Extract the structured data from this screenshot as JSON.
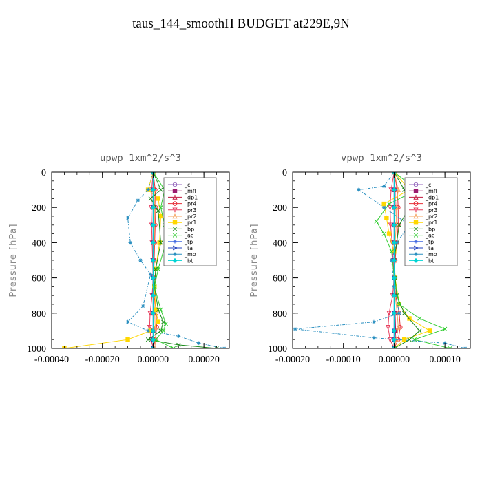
{
  "title": "taus_144_smoothH  BUDGET at229E,9N",
  "chart_data": [
    {
      "type": "line",
      "title": "upwp   1xm^2/s^3",
      "ylabel": "Pressure [hPa]",
      "xlabel": "",
      "xlim": [
        -0.0004,
        0.0003
      ],
      "ylim": [
        1000,
        0
      ],
      "xticks": [
        "-0.00040",
        "-0.00020",
        "0.00000",
        "0.00020"
      ],
      "xtick_values": [
        -0.0004,
        -0.0002,
        0.0,
        0.0002
      ],
      "yticks": [
        "0",
        "200",
        "400",
        "600",
        "800",
        "1000"
      ],
      "ytick_values": [
        0,
        200,
        400,
        600,
        800,
        1000
      ],
      "grid": false,
      "legend_position": "top-right",
      "series": [
        {
          "name": "_cl",
          "color": "#9467bd",
          "marker": "circle",
          "x": [
            0,
            0,
            0,
            0,
            0,
            0,
            0,
            0,
            0,
            0,
            0,
            0
          ],
          "y": [
            0,
            100,
            200,
            300,
            400,
            500,
            600,
            700,
            800,
            900,
            950,
            1000
          ]
        },
        {
          "name": "_mfl",
          "color": "#9a1a6e",
          "marker": "square",
          "x": [
            0,
            3e-06,
            2e-06,
            2e-06,
            1e-06,
            0,
            0,
            0,
            2e-06,
            3e-06,
            2e-06,
            0
          ],
          "y": [
            0,
            100,
            200,
            300,
            400,
            500,
            600,
            700,
            800,
            900,
            950,
            1000
          ]
        },
        {
          "name": "_dp1",
          "color": "#c0143c",
          "marker": "triangle",
          "x": [
            0,
            0,
            0,
            0,
            0,
            0,
            0,
            0,
            0,
            0,
            0,
            0
          ],
          "y": [
            0,
            100,
            200,
            300,
            400,
            500,
            600,
            700,
            800,
            900,
            950,
            1000
          ]
        },
        {
          "name": "_pr4",
          "color": "#e8303a",
          "marker": "circle",
          "x": [
            0,
            8e-06,
            1e-05,
            8e-06,
            6e-06,
            4e-06,
            2e-06,
            4e-06,
            1.2e-05,
            1.4e-05,
            8e-06,
            0
          ],
          "y": [
            0,
            100,
            200,
            300,
            400,
            500,
            600,
            700,
            800,
            880,
            950,
            1000
          ]
        },
        {
          "name": "_pr3",
          "color": "#e84060",
          "marker": "triangle-down",
          "x": [
            0,
            -6e-06,
            -8e-06,
            -6e-06,
            -4e-06,
            -2e-06,
            0,
            -4e-06,
            -1.2e-05,
            -1.4e-05,
            -8e-06,
            0
          ],
          "y": [
            0,
            100,
            200,
            300,
            400,
            500,
            600,
            700,
            800,
            880,
            950,
            1000
          ]
        },
        {
          "name": "_pr2",
          "color": "#f4a460",
          "marker": "triangle",
          "x": [
            0,
            4e-06,
            6e-06,
            6e-06,
            4e-06,
            2e-06,
            0,
            2e-06,
            6e-06,
            8e-06,
            1e-05,
            6e-06
          ],
          "y": [
            0,
            100,
            200,
            300,
            400,
            500,
            600,
            700,
            800,
            880,
            950,
            1000
          ]
        },
        {
          "name": "_pr1",
          "color": "#ffd700",
          "marker": "square",
          "x": [
            0,
            -2e-05,
            2e-05,
            3e-05,
            2.5e-05,
            1e-05,
            5e-06,
            1e-05,
            2e-05,
            -1e-05,
            -0.0001,
            -0.00035
          ],
          "y": [
            0,
            100,
            150,
            250,
            400,
            550,
            650,
            780,
            850,
            900,
            950,
            1000
          ]
        },
        {
          "name": "_bp",
          "color": "#1a8a1a",
          "marker": "cross",
          "x": [
            0,
            3e-05,
            -1e-05,
            2e-05,
            3e-05,
            1e-05,
            5e-06,
            2e-05,
            4e-05,
            3e-05,
            -2e-05,
            0.0001,
            0.00025
          ],
          "y": [
            0,
            100,
            150,
            220,
            400,
            550,
            650,
            780,
            850,
            900,
            950,
            980,
            1000
          ]
        },
        {
          "name": "_ac",
          "color": "#32cd32",
          "marker": "cross",
          "x": [
            0,
            4.5e-05,
            3e-05,
            4.5e-05,
            5e-05,
            2e-05,
            5e-06,
            3e-05,
            5e-05,
            4e-05,
            1e-05,
            8e-05
          ],
          "y": [
            0,
            100,
            200,
            300,
            400,
            550,
            650,
            780,
            860,
            900,
            950,
            1000
          ]
        },
        {
          "name": "_tp",
          "color": "#4169e1",
          "marker": "star",
          "x": [
            0,
            0,
            0,
            0,
            0,
            0,
            0,
            0,
            0,
            0,
            0,
            0
          ],
          "y": [
            0,
            100,
            200,
            300,
            400,
            500,
            600,
            700,
            800,
            900,
            950,
            1000
          ]
        },
        {
          "name": "_ta",
          "color": "#1f3fbf",
          "marker": "arrow",
          "x": [
            0,
            0,
            0,
            0,
            0,
            0,
            0,
            0,
            0,
            0,
            0,
            0
          ],
          "y": [
            0,
            100,
            200,
            300,
            400,
            500,
            600,
            700,
            800,
            900,
            950,
            1000
          ]
        },
        {
          "name": "_mo",
          "color": "#2a8fc0",
          "marker": "star",
          "x": [
            0,
            -2e-05,
            -6e-05,
            -0.0001,
            -9e-05,
            -5e-05,
            -1e-05,
            -4e-05,
            -0.0001,
            -2e-05,
            0.0001,
            0.00018,
            0.00028
          ],
          "y": [
            0,
            100,
            160,
            260,
            400,
            500,
            580,
            760,
            850,
            900,
            930,
            970,
            1000
          ]
        },
        {
          "name": "_bt",
          "color": "#00d4d4",
          "marker": "diamond",
          "x": [
            0,
            0,
            0,
            0,
            0,
            0,
            0,
            0,
            0,
            0,
            0,
            0
          ],
          "y": [
            0,
            100,
            200,
            300,
            400,
            500,
            600,
            700,
            800,
            900,
            950,
            1000
          ]
        }
      ]
    },
    {
      "type": "line",
      "title": "vpwp   1xm^2/s^3",
      "ylabel": "Pressure [hPa]",
      "xlabel": "",
      "xlim": [
        -0.0002,
        0.00015
      ],
      "ylim": [
        1000,
        0
      ],
      "xticks": [
        "-0.00020",
        "-0.00010",
        "0.00000",
        "0.00010"
      ],
      "xtick_values": [
        -0.0002,
        -0.0001,
        0.0,
        0.0001
      ],
      "yticks": [
        "0",
        "200",
        "400",
        "600",
        "800",
        "1000"
      ],
      "ytick_values": [
        0,
        200,
        400,
        600,
        800,
        1000
      ],
      "grid": false,
      "legend_position": "top-right",
      "series": [
        {
          "name": "_cl",
          "color": "#9467bd",
          "marker": "circle",
          "x": [
            0,
            0,
            0,
            0,
            0,
            0,
            0,
            0,
            0,
            0,
            0,
            0
          ],
          "y": [
            0,
            100,
            200,
            300,
            400,
            500,
            600,
            700,
            800,
            900,
            950,
            1000
          ]
        },
        {
          "name": "_mfl",
          "color": "#9a1a6e",
          "marker": "square",
          "x": [
            0,
            2e-06,
            2e-06,
            1e-06,
            0,
            0,
            0,
            0,
            2e-06,
            3e-06,
            2e-06,
            0
          ],
          "y": [
            0,
            100,
            200,
            300,
            400,
            500,
            600,
            700,
            800,
            900,
            950,
            1000
          ]
        },
        {
          "name": "_dp1",
          "color": "#c0143c",
          "marker": "triangle",
          "x": [
            0,
            0,
            0,
            0,
            0,
            0,
            0,
            0,
            0,
            0,
            0,
            0
          ],
          "y": [
            0,
            100,
            200,
            300,
            400,
            500,
            600,
            700,
            800,
            900,
            950,
            1000
          ]
        },
        {
          "name": "_pr4",
          "color": "#e8303a",
          "marker": "circle",
          "x": [
            0,
            6e-06,
            8e-06,
            8e-06,
            5e-06,
            2e-06,
            0,
            3e-06,
            1e-05,
            1.2e-05,
            8e-06,
            0
          ],
          "y": [
            0,
            100,
            200,
            300,
            400,
            500,
            600,
            700,
            800,
            880,
            950,
            1000
          ]
        },
        {
          "name": "_pr3",
          "color": "#e84060",
          "marker": "triangle-down",
          "x": [
            0,
            -6e-06,
            -8e-06,
            -7e-06,
            -4e-06,
            -2e-06,
            0,
            -3e-06,
            -1e-05,
            -1.2e-05,
            -8e-06,
            0
          ],
          "y": [
            0,
            100,
            200,
            300,
            400,
            500,
            600,
            700,
            800,
            880,
            950,
            1000
          ]
        },
        {
          "name": "_pr2",
          "color": "#f4a460",
          "marker": "triangle",
          "x": [
            0,
            8e-06,
            4e-06,
            4e-06,
            2e-06,
            1e-06,
            0,
            2e-06,
            6e-06,
            8e-06,
            4e-06,
            0
          ],
          "y": [
            0,
            100,
            200,
            300,
            400,
            500,
            600,
            700,
            800,
            880,
            950,
            1000
          ]
        },
        {
          "name": "_pr1",
          "color": "#ffd700",
          "marker": "square",
          "x": [
            0,
            3e-05,
            -2e-05,
            -1.5e-05,
            -1e-05,
            0,
            2e-06,
            1e-05,
            3e-05,
            7e-05,
            2e-05,
            0
          ],
          "y": [
            0,
            100,
            180,
            260,
            350,
            450,
            600,
            750,
            830,
            900,
            950,
            1000
          ]
        },
        {
          "name": "_bp",
          "color": "#1a8a1a",
          "marker": "cross",
          "x": [
            0,
            2e-05,
            3e-05,
            1e-05,
            5e-06,
            0,
            2e-06,
            5e-06,
            2e-05,
            5e-05,
            3e-05,
            0
          ],
          "y": [
            0,
            100,
            200,
            300,
            400,
            500,
            600,
            700,
            800,
            900,
            950,
            1000
          ]
        },
        {
          "name": "_ac",
          "color": "#32cd32",
          "marker": "cross",
          "x": [
            0,
            4.5e-05,
            -1e-05,
            -3.5e-05,
            -2e-05,
            -5e-06,
            0,
            1e-05,
            5e-05,
            0.0001,
            4e-05,
            0.00011
          ],
          "y": [
            0,
            100,
            180,
            280,
            350,
            450,
            600,
            750,
            830,
            890,
            950,
            1000
          ]
        },
        {
          "name": "_tp",
          "color": "#4169e1",
          "marker": "star",
          "x": [
            0,
            0,
            0,
            0,
            0,
            0,
            0,
            0,
            0,
            0,
            0,
            0
          ],
          "y": [
            0,
            100,
            200,
            300,
            400,
            500,
            600,
            700,
            800,
            900,
            950,
            1000
          ]
        },
        {
          "name": "_ta",
          "color": "#1f3fbf",
          "marker": "arrow",
          "x": [
            0,
            0,
            0,
            0,
            0,
            0,
            0,
            0,
            0,
            0,
            0,
            0
          ],
          "y": [
            0,
            100,
            200,
            300,
            400,
            500,
            600,
            700,
            800,
            900,
            950,
            1000
          ]
        },
        {
          "name": "_mo",
          "color": "#2a8fc0",
          "marker": "star",
          "x": [
            0,
            -2e-05,
            -7e-05,
            -2e-05,
            3e-05,
            5e-06,
            -5e-06,
            0,
            1e-05,
            -4e-05,
            -0.000195,
            -4e-05,
            0.0001,
            0.00014
          ],
          "y": [
            0,
            80,
            100,
            200,
            300,
            400,
            500,
            650,
            800,
            850,
            890,
            940,
            970,
            1000
          ]
        },
        {
          "name": "_bt",
          "color": "#00d4d4",
          "marker": "diamond",
          "x": [
            0,
            0,
            0,
            0,
            0,
            0,
            0,
            0,
            0,
            0,
            0,
            0
          ],
          "y": [
            0,
            100,
            200,
            300,
            400,
            500,
            600,
            700,
            800,
            900,
            950,
            1000
          ]
        }
      ]
    }
  ]
}
